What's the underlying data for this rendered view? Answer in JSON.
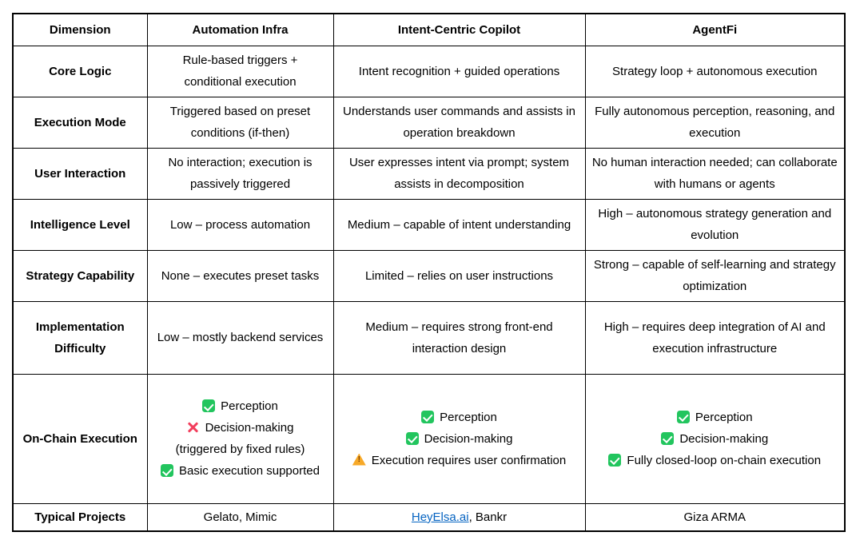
{
  "colors": {
    "check_green": "#22C55E",
    "cross_red": "#F23E5C",
    "warning_orange": "#F7A928",
    "link_blue": "#0563C1",
    "border_black": "#000000"
  },
  "table": {
    "header": [
      "Dimension",
      "Automation Infra",
      "Intent-Centric Copilot",
      "AgentFi"
    ],
    "rows": [
      {
        "label": "Core Logic",
        "cells": [
          {
            "text": "Rule-based triggers + conditional execution"
          },
          {
            "text": "Intent recognition + guided operations"
          },
          {
            "text": "Strategy loop + autonomous execution"
          }
        ]
      },
      {
        "label": "Execution Mode",
        "cells": [
          {
            "text": "Triggered based on preset conditions (if-then)"
          },
          {
            "text": "Understands user commands and assists in operation breakdown"
          },
          {
            "text": "Fully autonomous perception, reasoning, and execution"
          }
        ]
      },
      {
        "label": "User Interaction",
        "cells": [
          {
            "text": "No interaction; execution is passively triggered"
          },
          {
            "text": "User expresses intent via prompt; system assists in decomposition"
          },
          {
            "text": "No human interaction needed; can collaborate with humans or agents"
          }
        ]
      },
      {
        "label": "Intelligence Level",
        "cells": [
          {
            "text": "Low – process automation"
          },
          {
            "text": "Medium – capable of intent understanding"
          },
          {
            "text": "High – autonomous strategy generation and evolution"
          }
        ]
      },
      {
        "label": "Strategy Capability",
        "cells": [
          {
            "text": "None – executes preset tasks"
          },
          {
            "text": "Limited – relies on user instructions"
          },
          {
            "text": "Strong – capable of self-learning and strategy optimization"
          }
        ]
      },
      {
        "label": "Implementation Difficulty",
        "cells": [
          {
            "text": "Low – mostly backend services"
          },
          {
            "text": "Medium – requires strong front-end interaction design"
          },
          {
            "text": "High – requires deep integration of AI and execution infrastructure"
          }
        ]
      },
      {
        "label": "On-Chain Execution",
        "cells": [
          {
            "lines": [
              {
                "icon": "check-icon",
                "text": "Perception"
              },
              {
                "icon": "cross-icon",
                "text": "Decision-making"
              },
              {
                "icon": "none",
                "text": "(triggered by fixed rules)"
              },
              {
                "icon": "check-icon",
                "text": "Basic execution supported"
              }
            ]
          },
          {
            "lines": [
              {
                "icon": "check-icon",
                "text": "Perception"
              },
              {
                "icon": "check-icon",
                "text": "Decision-making"
              },
              {
                "icon": "warning-icon",
                "text": "Execution requires user confirmation"
              }
            ]
          },
          {
            "lines": [
              {
                "icon": "check-icon",
                "text": "Perception"
              },
              {
                "icon": "check-icon",
                "text": "Decision-making"
              },
              {
                "icon": "check-icon",
                "text": "Fully closed-loop on-chain execution"
              }
            ]
          }
        ]
      },
      {
        "label": "Typical Projects",
        "cells": [
          {
            "text": "Gelato, Mimic"
          },
          {
            "link": "HeyElsa.ai",
            "suffix": ", Bankr"
          },
          {
            "text": "Giza ARMA"
          }
        ]
      }
    ]
  }
}
